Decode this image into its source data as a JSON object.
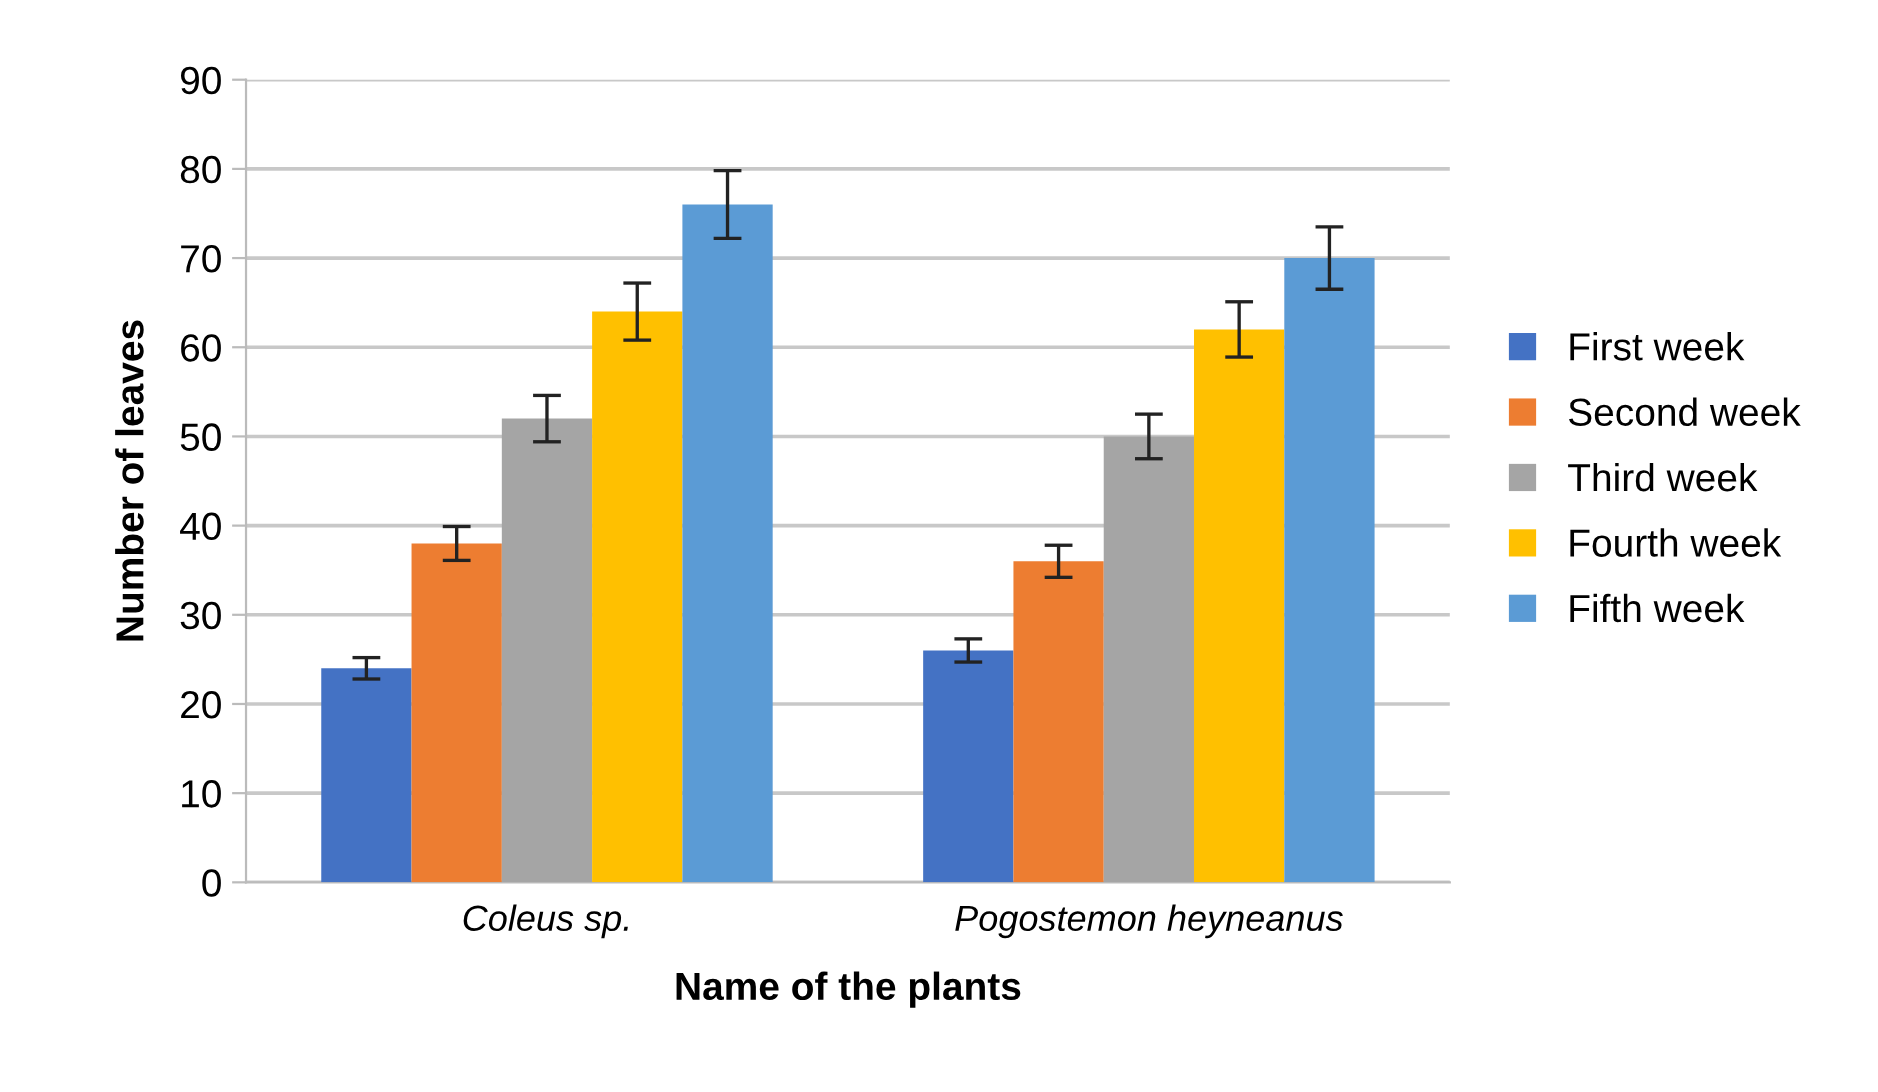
{
  "chart_data": {
    "type": "bar",
    "xlabel": "Name of the plants",
    "ylabel": "Number of leaves",
    "categories": [
      "Coleus sp.",
      "Pogostemon heyneanus"
    ],
    "series": [
      {
        "name": "First week",
        "color": "#4472c4",
        "values": [
          24,
          26
        ],
        "errors": [
          1.2,
          1.3
        ]
      },
      {
        "name": "Second week",
        "color": "#ed7d31",
        "values": [
          38,
          36
        ],
        "errors": [
          1.9,
          1.8
        ]
      },
      {
        "name": "Third week",
        "color": "#a5a5a5",
        "values": [
          52,
          50
        ],
        "errors": [
          2.6,
          2.5
        ]
      },
      {
        "name": "Fourth week",
        "color": "#ffc000",
        "values": [
          64,
          62
        ],
        "errors": [
          3.2,
          3.1
        ]
      },
      {
        "name": "Fifth week",
        "color": "#5b9bd5",
        "values": [
          76,
          70
        ],
        "errors": [
          3.8,
          3.5
        ]
      }
    ],
    "ylim": [
      0,
      90
    ],
    "yticks": [
      0,
      10,
      20,
      30,
      40,
      50,
      60,
      70,
      80,
      90
    ],
    "grid": "y",
    "legend": "right"
  }
}
